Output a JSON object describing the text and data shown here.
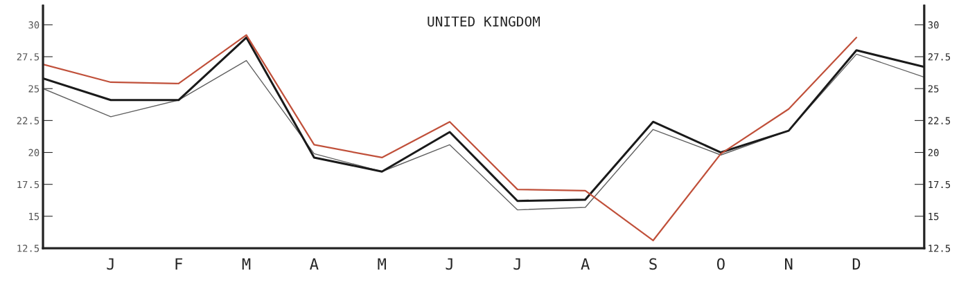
{
  "chart_data": {
    "type": "line",
    "title": "UNITED KINGDOM",
    "categories": [
      null,
      "J",
      "F",
      "M",
      "A",
      "M",
      "J",
      "J",
      "A",
      "S",
      "O",
      "N",
      "D",
      null
    ],
    "ylim": [
      12.5,
      31.5
    ],
    "yticks": [
      12.5,
      15,
      17.5,
      20,
      22.5,
      25,
      27.5,
      30
    ],
    "y2lim": [
      12.5,
      31.5
    ],
    "y2ticks": [
      12.5,
      15,
      17.5,
      20,
      22.5,
      25,
      27.5,
      30
    ],
    "series": [
      {
        "color": "#606060",
        "values": [
          25.0,
          22.8,
          24.1,
          27.2,
          19.9,
          18.5,
          20.6,
          15.5,
          15.7,
          21.8,
          19.8,
          21.7,
          27.7,
          25.9
        ]
      },
      {
        "color": "#1a1a1a",
        "values": [
          25.8,
          24.1,
          24.1,
          29.0,
          19.6,
          18.5,
          21.6,
          16.2,
          16.3,
          22.4,
          20.0,
          21.7,
          28.0,
          26.7
        ]
      },
      {
        "color": "#c0503a",
        "values": [
          26.9,
          25.5,
          25.4,
          29.2,
          20.6,
          19.6,
          22.4,
          17.1,
          17.0,
          13.1,
          19.9,
          23.4,
          29.0,
          null
        ]
      }
    ],
    "grid": false,
    "legend": false,
    "marker": "none",
    "line_style": "solid"
  }
}
